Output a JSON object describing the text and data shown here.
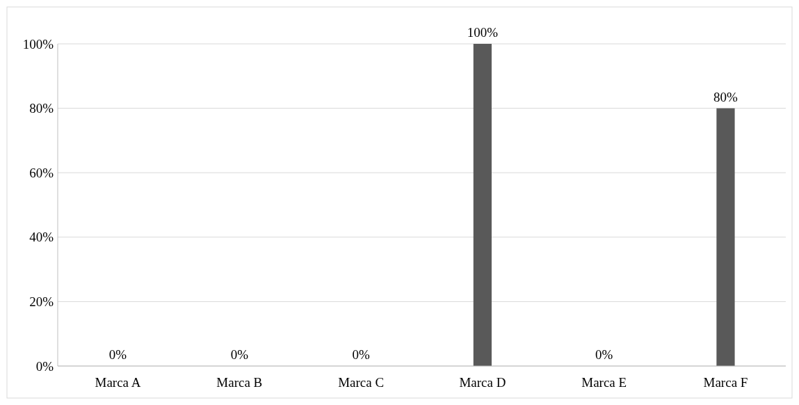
{
  "chart_data": {
    "type": "bar",
    "categories": [
      "Marca A",
      "Marca B",
      "Marca C",
      "Marca D",
      "Marca E",
      "Marca F"
    ],
    "values": [
      0,
      0,
      0,
      100,
      0,
      80
    ],
    "value_labels": [
      "0%",
      "0%",
      "0%",
      "100%",
      "0%",
      "80%"
    ],
    "color": "#595959",
    "ylim": [
      0,
      100
    ],
    "yticks": [
      {
        "value": 0,
        "label": "0%"
      },
      {
        "value": 20,
        "label": "20%"
      },
      {
        "value": 40,
        "label": "40%"
      },
      {
        "value": 60,
        "label": "60%"
      },
      {
        "value": 80,
        "label": "80%"
      },
      {
        "value": 100,
        "label": "100%"
      }
    ],
    "grid": "y"
  }
}
